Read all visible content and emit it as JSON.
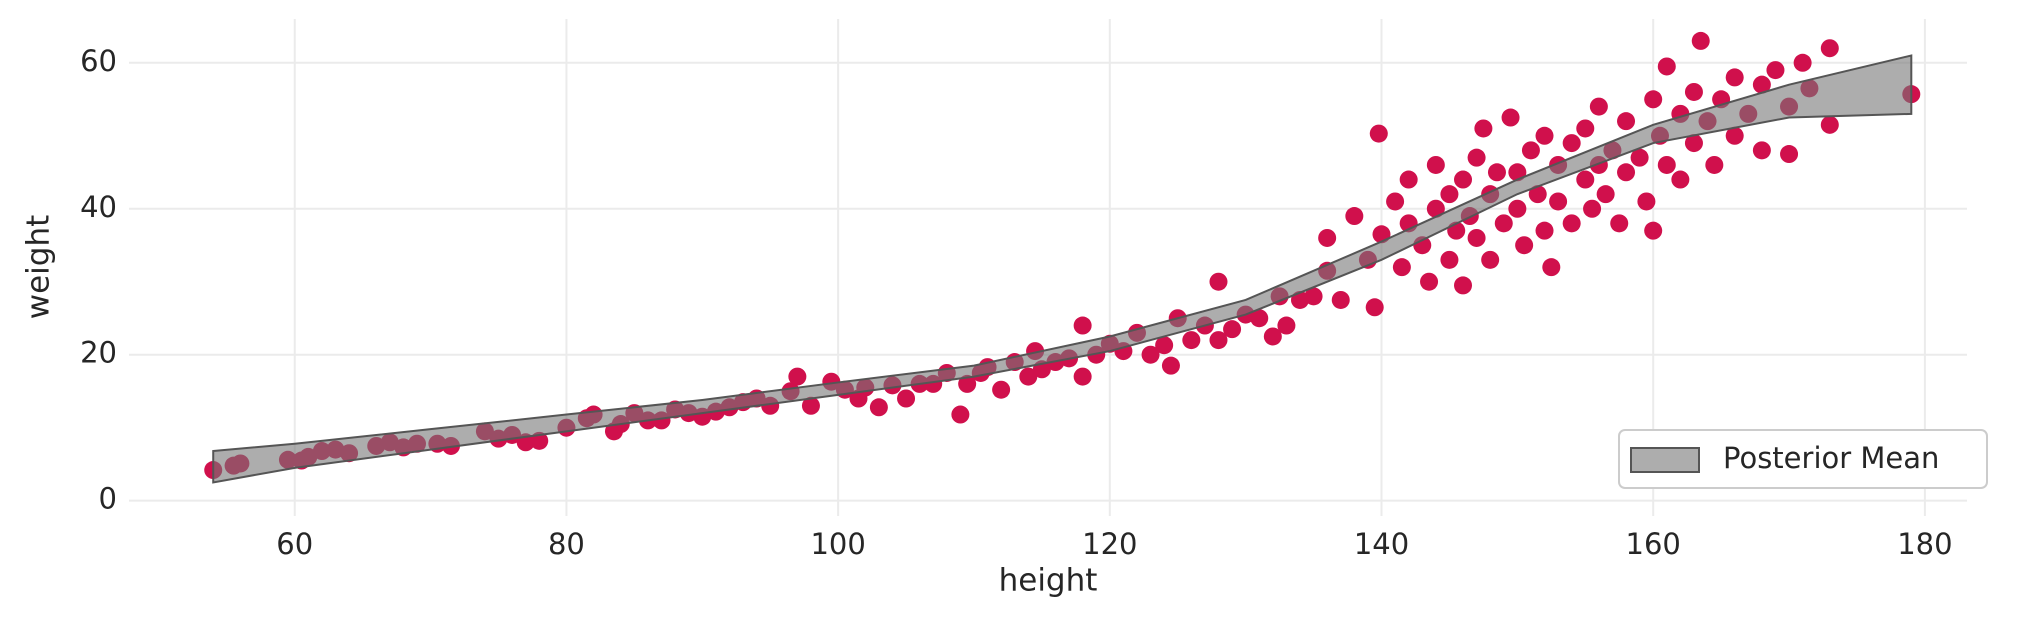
{
  "chart_data": {
    "type": "scatter",
    "xlabel": "height",
    "ylabel": "weight",
    "xlim": [
      47.8,
      183.1
    ],
    "ylim": [
      -2.1,
      66
    ],
    "xticks": [
      60,
      80,
      100,
      120,
      140,
      160,
      180
    ],
    "yticks": [
      0,
      20,
      40,
      60
    ],
    "grid": true,
    "legend": "lower right",
    "series": [
      {
        "color": "#d0104c",
        "x": [
          54,
          55.5,
          56,
          59.5,
          60.5,
          61,
          62,
          63,
          64,
          66,
          67,
          68,
          69,
          70.5,
          71.5,
          74,
          75,
          76,
          77,
          78,
          80,
          81.5,
          82,
          83.5,
          84,
          85,
          86,
          87,
          88,
          89,
          90,
          91,
          92,
          93,
          94,
          95,
          96.5,
          97,
          98,
          99.5,
          100.5,
          101.5,
          102,
          103,
          104,
          105,
          106,
          107,
          108,
          109,
          109.5,
          110.5,
          111,
          112,
          113,
          114,
          114.5,
          115,
          116,
          117,
          118,
          118,
          119,
          120,
          121,
          122,
          123,
          124,
          124.5,
          125,
          126,
          127,
          128,
          128,
          129,
          130,
          131,
          132,
          132.5,
          133,
          134,
          135,
          136,
          136,
          137,
          138,
          139,
          139.5,
          139.8,
          140,
          141,
          141.5,
          142,
          142,
          143,
          143.5,
          144,
          144,
          145,
          145,
          145.5,
          146,
          146,
          146.5,
          147,
          147,
          147.5,
          148,
          148,
          148.5,
          149,
          149.5,
          150,
          150,
          150.5,
          151,
          151.5,
          152,
          152,
          152.5,
          153,
          153,
          154,
          154,
          155,
          155,
          155.5,
          156,
          156,
          156.5,
          157,
          157.5,
          158,
          158,
          159,
          159.5,
          160,
          160,
          160.5,
          161,
          161,
          162,
          162,
          163,
          163,
          163.5,
          164,
          164.5,
          165,
          166,
          166,
          167,
          168,
          168,
          169,
          170,
          170,
          171,
          171.5,
          173,
          173,
          179
        ],
        "y": [
          4.2,
          4.8,
          5.1,
          5.6,
          5.5,
          6,
          6.8,
          7,
          6.5,
          7.5,
          8,
          7.3,
          7.8,
          7.8,
          7.5,
          9.5,
          8.5,
          9,
          8,
          8.2,
          10,
          11.3,
          11.8,
          9.5,
          10.5,
          12,
          11,
          11,
          12.5,
          12,
          11.5,
          12.2,
          12.8,
          13.5,
          14,
          13,
          15,
          17,
          13,
          16.3,
          15.2,
          14,
          15.5,
          12.8,
          15.8,
          14,
          16,
          16,
          17.5,
          11.8,
          16,
          17.5,
          18.3,
          15.2,
          19,
          17,
          20.5,
          18,
          19,
          19.5,
          24,
          17,
          20,
          21.5,
          20.5,
          23,
          20,
          21.3,
          18.5,
          25,
          22,
          24,
          22,
          30,
          23.5,
          25.5,
          25,
          22.5,
          28,
          24,
          27.5,
          28,
          31.5,
          36,
          27.5,
          39,
          33,
          26.5,
          50.3,
          36.5,
          41,
          32,
          44,
          38,
          35,
          30,
          40,
          46,
          42,
          33,
          37,
          44,
          29.5,
          39,
          47,
          36,
          51,
          42,
          33,
          45,
          38,
          52.5,
          45,
          40,
          35,
          48,
          42,
          50,
          37,
          32,
          46,
          41,
          49,
          38,
          44,
          51,
          40,
          54,
          46,
          42,
          48,
          38,
          52,
          45,
          47,
          41,
          55,
          37,
          50,
          46,
          59.5,
          53,
          44,
          56,
          49,
          63,
          52,
          46,
          55,
          58,
          50,
          53,
          57,
          48,
          59,
          54,
          47.5,
          60,
          56.5,
          62,
          51.5,
          55.7
        ]
      }
    ],
    "band": {
      "name": "Posterior Mean",
      "color": "#777777",
      "x": [
        54,
        60,
        70,
        80,
        90,
        100,
        110,
        120,
        130,
        140,
        150,
        160,
        170,
        179
      ],
      "lower": [
        2.5,
        4.5,
        7,
        9.5,
        12,
        14.5,
        17,
        20.5,
        25.5,
        33,
        42,
        49,
        52.5,
        53
      ],
      "upper": [
        6.8,
        7.8,
        9.8,
        11.8,
        13.8,
        16.2,
        18.5,
        22.5,
        27.5,
        35.5,
        44,
        51.5,
        57,
        61
      ]
    }
  }
}
